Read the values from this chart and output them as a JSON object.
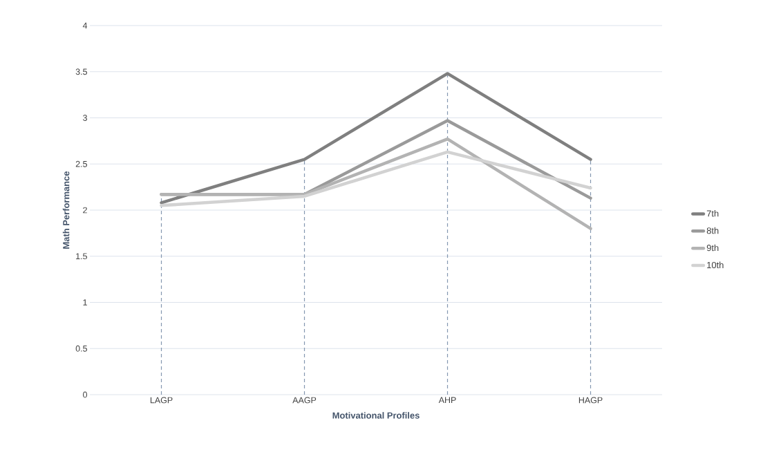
{
  "chart_data": {
    "type": "line",
    "xlabel": "Motivational Profiles",
    "ylabel": "Math Performance",
    "categories": [
      "LAGP",
      "AAGP",
      "AHP",
      "HAGP"
    ],
    "series": [
      {
        "name": "7th",
        "color": "#7f7f7f",
        "values": [
          2.08,
          2.55,
          3.48,
          2.55
        ]
      },
      {
        "name": "8th",
        "color": "#9a9a9a",
        "values": [
          2.17,
          2.17,
          2.97,
          2.13
        ]
      },
      {
        "name": "9th",
        "color": "#b3b3b3",
        "values": [
          2.17,
          2.17,
          2.77,
          1.8
        ]
      },
      {
        "name": "10th",
        "color": "#d2d2d2",
        "values": [
          2.05,
          2.15,
          2.63,
          2.24
        ]
      }
    ],
    "ylim": [
      0,
      4
    ],
    "yticks": [
      0,
      0.5,
      1,
      1.5,
      2,
      2.5,
      3,
      3.5,
      4
    ],
    "grid": "y",
    "legend": "right",
    "ref_lines": [
      {
        "axis": "x",
        "value": "LAGP",
        "color": "#8497b0",
        "line_style": "dashed"
      },
      {
        "axis": "x",
        "value": "AAGP",
        "color": "#8497b0",
        "line_style": "dashed"
      },
      {
        "axis": "x",
        "value": "AHP",
        "color": "#8497b0",
        "line_style": "dashed"
      },
      {
        "axis": "x",
        "value": "HAGP",
        "color": "#8497b0",
        "line_style": "dashed"
      }
    ]
  }
}
